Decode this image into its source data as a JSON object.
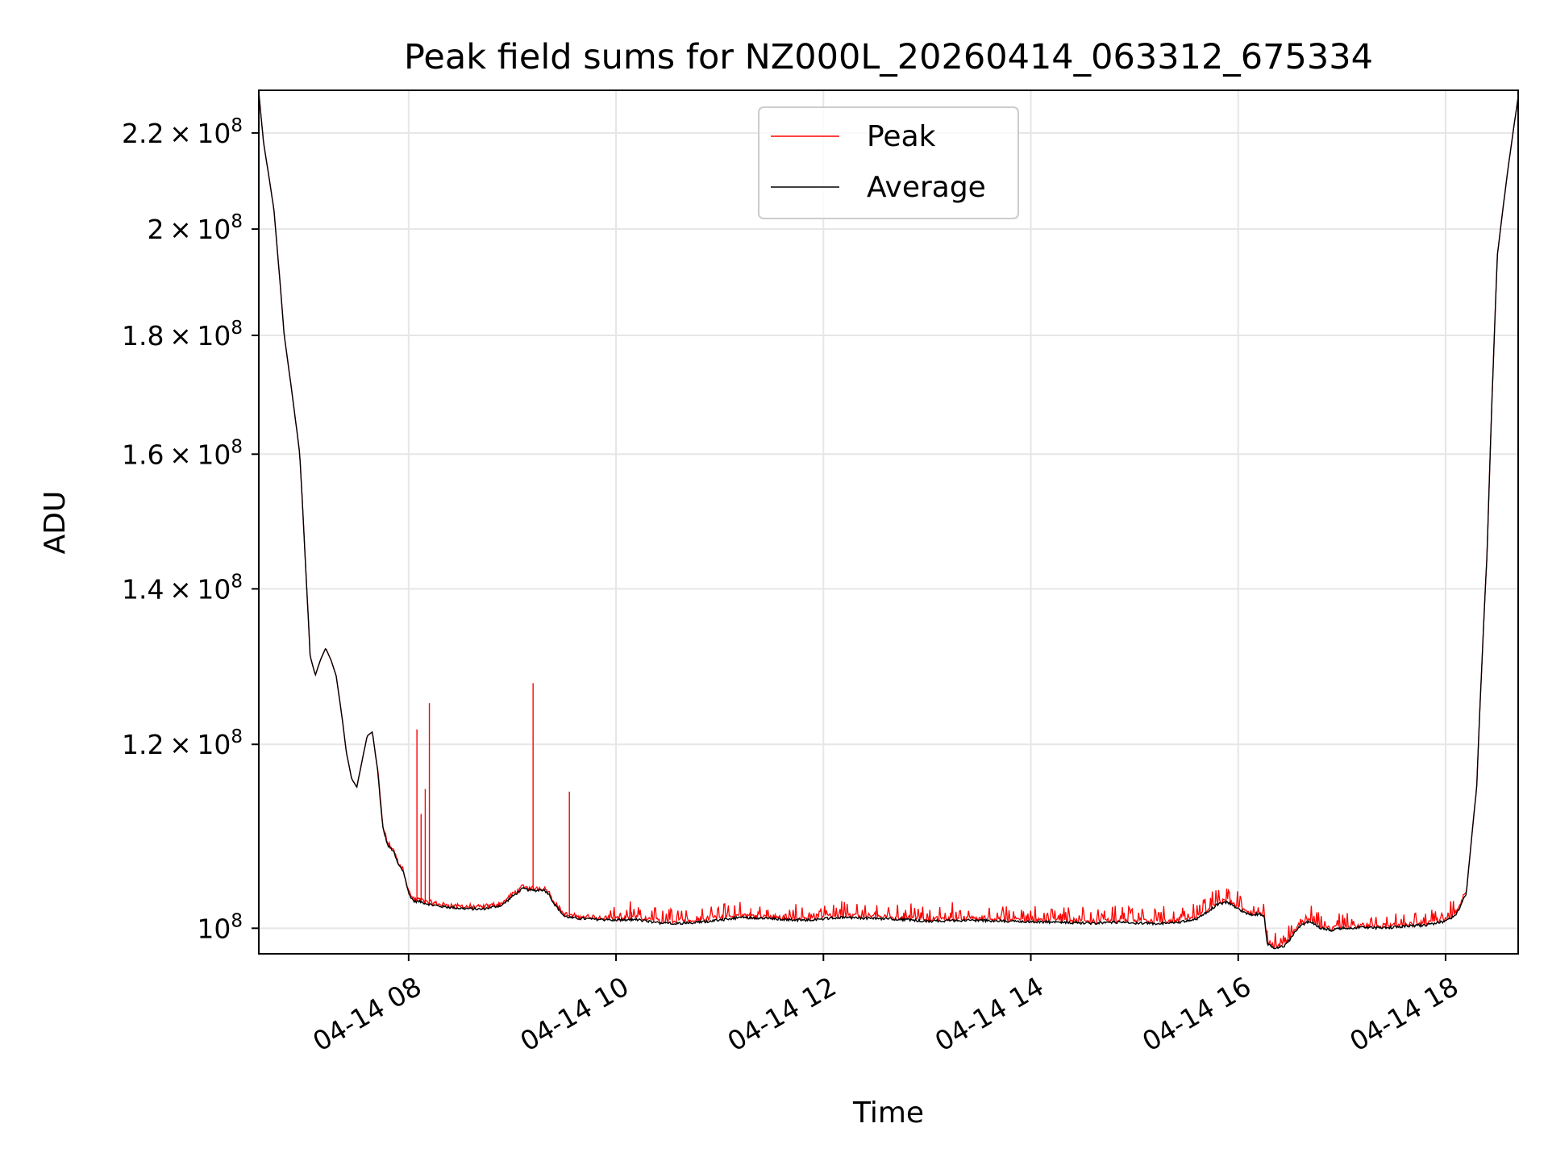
{
  "chart_data": {
    "type": "line",
    "title": "Peak field sums for NZ000L_20260414_063312_675334",
    "xlabel": "Time",
    "ylabel": "ADU",
    "yscale": "log",
    "grid": true,
    "legend_position": "top-center",
    "xlim": [
      6.555,
      18.7
    ],
    "ylim": [
      97500000,
      229500000
    ],
    "x_ticks": [
      {
        "value": 8,
        "label": "04-14 08"
      },
      {
        "value": 10,
        "label": "04-14 10"
      },
      {
        "value": 12,
        "label": "04-14 12"
      },
      {
        "value": 14,
        "label": "04-14 14"
      },
      {
        "value": 16,
        "label": "04-14 16"
      },
      {
        "value": 18,
        "label": "04-14 18"
      }
    ],
    "y_ticks": [
      {
        "value": 100000000,
        "mantissa": "",
        "exponent": "8",
        "base": "10"
      },
      {
        "value": 120000000,
        "mantissa": "1.2",
        "exponent": "8",
        "base": "10"
      },
      {
        "value": 140000000,
        "mantissa": "1.4",
        "exponent": "8",
        "base": "10"
      },
      {
        "value": 160000000,
        "mantissa": "1.6",
        "exponent": "8",
        "base": "10"
      },
      {
        "value": 180000000,
        "mantissa": "1.8",
        "exponent": "8",
        "base": "10"
      },
      {
        "value": 200000000,
        "mantissa": "2",
        "exponent": "8",
        "base": "10"
      },
      {
        "value": 220000000,
        "mantissa": "2.2",
        "exponent": "8",
        "base": "10"
      }
    ],
    "times_symbol": "×",
    "series": [
      {
        "name": "Peak",
        "color": "#ff0000"
      },
      {
        "name": "Average",
        "color": "#000000"
      }
    ],
    "average_points": [
      [
        6.555,
        229000000
      ],
      [
        6.6,
        218000000
      ],
      [
        6.7,
        204000000
      ],
      [
        6.8,
        180000000
      ],
      [
        6.95,
        160000000
      ],
      [
        7.0,
        145000000
      ],
      [
        7.05,
        131000000
      ],
      [
        7.1,
        128500000
      ],
      [
        7.15,
        130500000
      ],
      [
        7.2,
        132000000
      ],
      [
        7.25,
        130500000
      ],
      [
        7.3,
        128500000
      ],
      [
        7.35,
        124000000
      ],
      [
        7.4,
        119000000
      ],
      [
        7.45,
        116000000
      ],
      [
        7.5,
        115000000
      ],
      [
        7.55,
        118000000
      ],
      [
        7.6,
        121000000
      ],
      [
        7.65,
        121500000
      ],
      [
        7.7,
        117000000
      ],
      [
        7.75,
        110500000
      ],
      [
        7.8,
        108500000
      ],
      [
        7.85,
        108000000
      ],
      [
        7.9,
        106500000
      ],
      [
        7.95,
        105800000
      ],
      [
        8.0,
        103500000
      ],
      [
        8.05,
        102700000
      ],
      [
        8.1,
        102700000
      ],
      [
        8.2,
        102400000
      ],
      [
        8.3,
        102200000
      ],
      [
        8.5,
        102000000
      ],
      [
        8.7,
        101900000
      ],
      [
        8.9,
        102300000
      ],
      [
        9.0,
        103200000
      ],
      [
        9.1,
        104000000
      ],
      [
        9.2,
        103800000
      ],
      [
        9.3,
        103900000
      ],
      [
        9.35,
        103500000
      ],
      [
        9.4,
        102500000
      ],
      [
        9.5,
        101200000
      ],
      [
        9.6,
        101000000
      ],
      [
        9.8,
        100900000
      ],
      [
        10.0,
        100800000
      ],
      [
        10.2,
        100850000
      ],
      [
        10.4,
        100550000
      ],
      [
        10.6,
        100500000
      ],
      [
        10.8,
        100600000
      ],
      [
        11.0,
        100800000
      ],
      [
        11.2,
        101100000
      ],
      [
        11.4,
        101000000
      ],
      [
        11.6,
        100900000
      ],
      [
        11.8,
        100800000
      ],
      [
        12.0,
        100950000
      ],
      [
        12.2,
        101100000
      ],
      [
        12.4,
        101000000
      ],
      [
        12.6,
        100950000
      ],
      [
        12.8,
        100850000
      ],
      [
        13.0,
        100700000
      ],
      [
        13.2,
        100750000
      ],
      [
        13.4,
        100800000
      ],
      [
        13.6,
        100750000
      ],
      [
        13.8,
        100700000
      ],
      [
        14.0,
        100650000
      ],
      [
        14.2,
        100600000
      ],
      [
        14.4,
        100550000
      ],
      [
        14.6,
        100500000
      ],
      [
        14.8,
        100600000
      ],
      [
        15.0,
        100500000
      ],
      [
        15.2,
        100450000
      ],
      [
        15.4,
        100550000
      ],
      [
        15.6,
        100900000
      ],
      [
        15.7,
        101600000
      ],
      [
        15.8,
        102400000
      ],
      [
        15.9,
        102600000
      ],
      [
        16.0,
        101900000
      ],
      [
        16.1,
        101400000
      ],
      [
        16.2,
        101400000
      ],
      [
        16.25,
        101300000
      ],
      [
        16.28,
        98500000
      ],
      [
        16.35,
        98000000
      ],
      [
        16.45,
        98300000
      ],
      [
        16.5,
        98900000
      ],
      [
        16.6,
        100300000
      ],
      [
        16.7,
        100700000
      ],
      [
        16.8,
        100000000
      ],
      [
        16.9,
        99800000
      ],
      [
        17.0,
        100000000
      ],
      [
        17.2,
        100100000
      ],
      [
        17.4,
        100000000
      ],
      [
        17.6,
        100200000
      ],
      [
        17.8,
        100300000
      ],
      [
        18.0,
        100700000
      ],
      [
        18.1,
        101300000
      ],
      [
        18.2,
        103500000
      ],
      [
        18.3,
        115000000
      ],
      [
        18.4,
        145000000
      ],
      [
        18.5,
        195000000
      ],
      [
        18.6,
        212000000
      ],
      [
        18.7,
        228000000
      ]
    ],
    "peak_spikes": [
      [
        8.08,
        121800000
      ],
      [
        8.12,
        112000000
      ],
      [
        8.16,
        114800000
      ],
      [
        8.2,
        125000000
      ],
      [
        9.2,
        127500000
      ],
      [
        9.55,
        114500000
      ],
      [
        10.15,
        101600000
      ],
      [
        11.3,
        102000000
      ],
      [
        11.45,
        101800000
      ],
      [
        15.85,
        103000000
      ]
    ]
  }
}
